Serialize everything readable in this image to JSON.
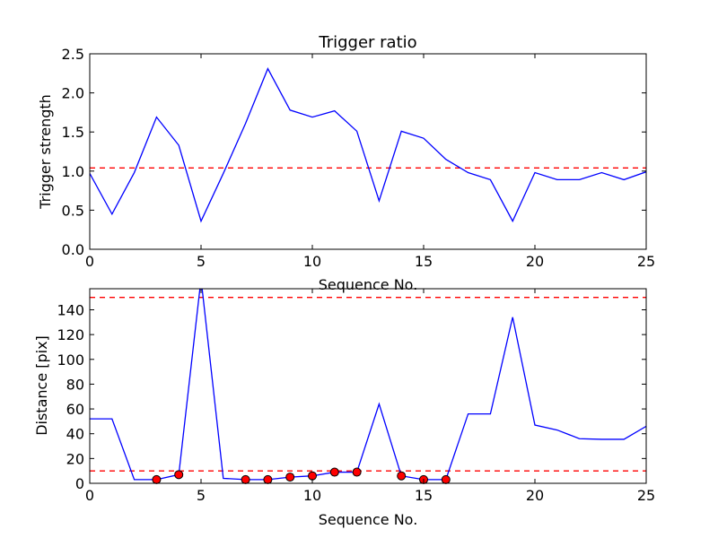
{
  "chart_data": [
    {
      "type": "line",
      "title": "Trigger ratio",
      "xlabel": "Sequence No.",
      "ylabel": "Trigger strength",
      "xlim": [
        0,
        25
      ],
      "ylim": [
        0,
        2.5
      ],
      "xticks": [
        0,
        5,
        10,
        15,
        20,
        25
      ],
      "yticks": [
        0.0,
        0.5,
        1.0,
        1.5,
        2.0,
        2.5
      ],
      "yticklabels": [
        "0.0",
        "0.5",
        "1.0",
        "1.5",
        "2.0",
        "2.5"
      ],
      "series": [
        {
          "color": "#0000ff",
          "x": [
            0,
            1,
            2,
            3,
            4,
            5,
            6,
            7,
            8,
            9,
            10,
            11,
            12,
            13,
            14,
            15,
            16,
            17,
            18,
            19,
            20,
            21,
            22,
            23,
            24,
            25
          ],
          "values": [
            0.97,
            0.45,
            0.98,
            1.69,
            1.33,
            0.36,
            0.97,
            1.61,
            2.31,
            1.78,
            1.69,
            1.77,
            1.51,
            0.62,
            1.51,
            1.42,
            1.15,
            0.98,
            0.89,
            0.36,
            0.98,
            0.89,
            0.89,
            0.98,
            0.89,
            0.99
          ]
        }
      ],
      "hlines": [
        {
          "y": 1.04,
          "color": "#ff0000",
          "style": "dashed"
        }
      ],
      "grid": false
    },
    {
      "type": "line",
      "title": "",
      "xlabel": "Sequence No.",
      "ylabel": "Distance [pix]",
      "xlim": [
        0,
        25
      ],
      "ylim": [
        0,
        157
      ],
      "xticks": [
        0,
        5,
        10,
        15,
        20,
        25
      ],
      "yticks": [
        0,
        20,
        40,
        60,
        80,
        100,
        120,
        140
      ],
      "yticklabels": [
        "0",
        "20",
        "40",
        "60",
        "80",
        "100",
        "120",
        "140"
      ],
      "series": [
        {
          "color": "#0000ff",
          "x": [
            0,
            1,
            2,
            3,
            4,
            5,
            6,
            7,
            8,
            9,
            10,
            11,
            12,
            13,
            14,
            15,
            16,
            17,
            18,
            19,
            20,
            21,
            22,
            23,
            24,
            25
          ],
          "values": [
            52,
            52,
            3,
            3,
            7,
            165,
            4,
            3,
            3,
            5,
            6,
            9,
            9,
            64,
            6,
            3,
            3,
            56,
            56,
            134,
            47,
            43,
            36,
            35.5,
            35.5,
            46
          ]
        }
      ],
      "markers": {
        "color": "#ff0000",
        "x": [
          3,
          4,
          7,
          8,
          9,
          10,
          11,
          12,
          14,
          15,
          16
        ],
        "values": [
          3,
          7,
          3,
          3,
          5,
          6,
          9,
          9,
          6,
          3,
          3
        ]
      },
      "hlines": [
        {
          "y": 150,
          "color": "#ff0000",
          "style": "dashed"
        },
        {
          "y": 10,
          "color": "#ff0000",
          "style": "dashed"
        }
      ],
      "grid": false
    }
  ]
}
